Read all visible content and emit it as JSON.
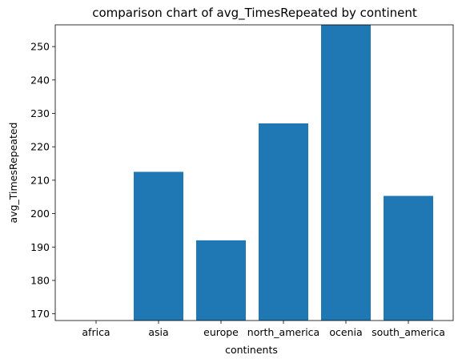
{
  "chart_data": {
    "type": "bar",
    "title": "comparison chart of avg_TimesRepeated by continent",
    "xlabel": "continents",
    "ylabel": "avg_TimesRepeated",
    "categories": [
      "africa",
      "asia",
      "europe",
      "north_america",
      "ocenia",
      "south_america"
    ],
    "values": [
      165,
      212.5,
      192,
      227,
      256.5,
      205.3
    ],
    "ylim": [
      168,
      256.5
    ],
    "yticks": [
      170,
      180,
      190,
      200,
      210,
      220,
      230,
      240,
      250
    ],
    "bar_color": "#1f77b4",
    "grid": false,
    "legend": "none"
  }
}
